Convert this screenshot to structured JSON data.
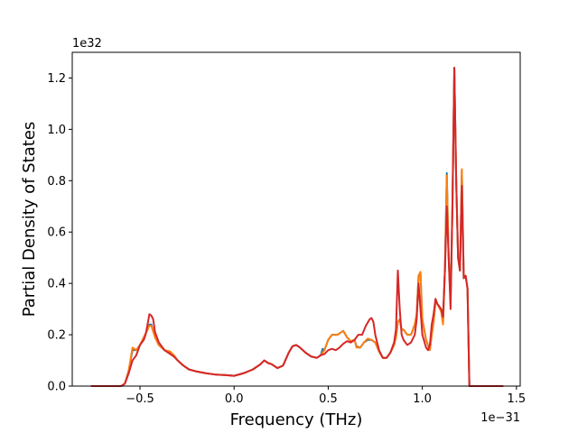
{
  "chart_data": {
    "type": "line",
    "title": "",
    "xlabel": "Frequency (THz)",
    "ylabel": "Partial Density of States",
    "x_offset_label": "1e−31",
    "y_offset_label": "1e32",
    "x_scale_note": "x values in units of 1e-31",
    "y_scale_note": "y values in units of 1e32",
    "xlim": [
      -0.86,
      1.52
    ],
    "ylim": [
      0,
      1.3
    ],
    "xticks": [
      -0.5,
      0.0,
      0.5,
      1.0,
      1.5
    ],
    "xtick_labels": [
      "−0.5",
      "0.0",
      "0.5",
      "1.0",
      "1.5"
    ],
    "yticks": [
      0.0,
      0.2,
      0.4,
      0.6,
      0.8,
      1.0,
      1.2
    ],
    "ytick_labels": [
      "0.0",
      "0.2",
      "0.4",
      "0.6",
      "0.8",
      "1.0",
      "1.2"
    ],
    "grid": false,
    "legend": "none",
    "series": [
      {
        "color": "#1f77b4",
        "points": [
          [
            -0.76,
            0
          ],
          [
            -0.6,
            0
          ],
          [
            -0.58,
            0.01
          ],
          [
            -0.56,
            0.06
          ],
          [
            -0.54,
            0.14
          ],
          [
            -0.52,
            0.14
          ],
          [
            -0.5,
            0.16
          ],
          [
            -0.48,
            0.19
          ],
          [
            -0.46,
            0.22
          ],
          [
            -0.45,
            0.24
          ],
          [
            -0.44,
            0.24
          ],
          [
            -0.42,
            0.19
          ],
          [
            -0.4,
            0.16
          ],
          [
            -0.37,
            0.14
          ],
          [
            -0.34,
            0.13
          ],
          [
            -0.32,
            0.12
          ],
          [
            -0.3,
            0.1
          ],
          [
            -0.27,
            0.08
          ],
          [
            -0.24,
            0.065
          ],
          [
            -0.2,
            0.057
          ],
          [
            -0.15,
            0.05
          ],
          [
            -0.1,
            0.045
          ],
          [
            -0.05,
            0.043
          ],
          [
            0.0,
            0.04
          ],
          [
            0.05,
            0.05
          ],
          [
            0.1,
            0.065
          ],
          [
            0.14,
            0.085
          ],
          [
            0.16,
            0.1
          ],
          [
            0.18,
            0.09
          ],
          [
            0.2,
            0.085
          ],
          [
            0.23,
            0.07
          ],
          [
            0.26,
            0.08
          ],
          [
            0.29,
            0.13
          ],
          [
            0.31,
            0.155
          ],
          [
            0.33,
            0.16
          ],
          [
            0.35,
            0.15
          ],
          [
            0.38,
            0.13
          ],
          [
            0.41,
            0.115
          ],
          [
            0.44,
            0.11
          ],
          [
            0.46,
            0.12
          ],
          [
            0.47,
            0.145
          ],
          [
            0.48,
            0.14
          ],
          [
            0.5,
            0.18
          ],
          [
            0.52,
            0.2
          ],
          [
            0.55,
            0.2
          ],
          [
            0.57,
            0.21
          ],
          [
            0.58,
            0.215
          ],
          [
            0.6,
            0.19
          ],
          [
            0.62,
            0.175
          ],
          [
            0.64,
            0.18
          ],
          [
            0.65,
            0.155
          ],
          [
            0.67,
            0.15
          ],
          [
            0.69,
            0.17
          ],
          [
            0.71,
            0.18
          ],
          [
            0.73,
            0.18
          ],
          [
            0.75,
            0.17
          ],
          [
            0.77,
            0.135
          ],
          [
            0.79,
            0.11
          ],
          [
            0.81,
            0.11
          ],
          [
            0.83,
            0.13
          ],
          [
            0.85,
            0.16
          ],
          [
            0.86,
            0.19
          ],
          [
            0.87,
            0.25
          ],
          [
            0.88,
            0.26
          ],
          [
            0.89,
            0.22
          ],
          [
            0.9,
            0.22
          ],
          [
            0.92,
            0.2
          ],
          [
            0.94,
            0.2
          ],
          [
            0.96,
            0.24
          ],
          [
            0.97,
            0.28
          ],
          [
            0.98,
            0.43
          ],
          [
            0.99,
            0.44
          ],
          [
            1.0,
            0.26
          ],
          [
            1.02,
            0.18
          ],
          [
            1.03,
            0.16
          ],
          [
            1.04,
            0.14
          ],
          [
            1.05,
            0.2
          ],
          [
            1.06,
            0.25
          ],
          [
            1.07,
            0.33
          ],
          [
            1.08,
            0.32
          ],
          [
            1.1,
            0.3
          ],
          [
            1.11,
            0.25
          ],
          [
            1.12,
            0.45
          ],
          [
            1.13,
            0.83
          ],
          [
            1.14,
            0.5
          ],
          [
            1.15,
            0.33
          ],
          [
            1.16,
            0.7
          ],
          [
            1.17,
            1.24
          ],
          [
            1.18,
            0.8
          ],
          [
            1.19,
            0.5
          ],
          [
            1.2,
            0.45
          ],
          [
            1.21,
            0.84
          ],
          [
            1.22,
            0.42
          ],
          [
            1.23,
            0.43
          ],
          [
            1.24,
            0.38
          ],
          [
            1.25,
            0
          ],
          [
            1.43,
            0
          ]
        ]
      },
      {
        "color": "#ff7f0e",
        "points": [
          [
            -0.76,
            0
          ],
          [
            -0.6,
            0
          ],
          [
            -0.58,
            0.01
          ],
          [
            -0.56,
            0.06
          ],
          [
            -0.54,
            0.15
          ],
          [
            -0.52,
            0.14
          ],
          [
            -0.5,
            0.16
          ],
          [
            -0.48,
            0.19
          ],
          [
            -0.46,
            0.22
          ],
          [
            -0.45,
            0.235
          ],
          [
            -0.44,
            0.235
          ],
          [
            -0.42,
            0.19
          ],
          [
            -0.4,
            0.16
          ],
          [
            -0.37,
            0.14
          ],
          [
            -0.34,
            0.135
          ],
          [
            -0.32,
            0.12
          ],
          [
            -0.3,
            0.1
          ],
          [
            -0.27,
            0.08
          ],
          [
            -0.24,
            0.065
          ],
          [
            -0.2,
            0.057
          ],
          [
            -0.15,
            0.05
          ],
          [
            -0.1,
            0.045
          ],
          [
            -0.05,
            0.043
          ],
          [
            0.0,
            0.04
          ],
          [
            0.05,
            0.05
          ],
          [
            0.1,
            0.065
          ],
          [
            0.14,
            0.085
          ],
          [
            0.16,
            0.1
          ],
          [
            0.18,
            0.09
          ],
          [
            0.2,
            0.085
          ],
          [
            0.23,
            0.07
          ],
          [
            0.26,
            0.08
          ],
          [
            0.29,
            0.13
          ],
          [
            0.31,
            0.155
          ],
          [
            0.33,
            0.16
          ],
          [
            0.35,
            0.15
          ],
          [
            0.38,
            0.13
          ],
          [
            0.41,
            0.115
          ],
          [
            0.44,
            0.11
          ],
          [
            0.46,
            0.12
          ],
          [
            0.47,
            0.13
          ],
          [
            0.48,
            0.14
          ],
          [
            0.5,
            0.18
          ],
          [
            0.52,
            0.2
          ],
          [
            0.55,
            0.2
          ],
          [
            0.57,
            0.21
          ],
          [
            0.58,
            0.215
          ],
          [
            0.6,
            0.19
          ],
          [
            0.62,
            0.175
          ],
          [
            0.64,
            0.18
          ],
          [
            0.65,
            0.15
          ],
          [
            0.67,
            0.15
          ],
          [
            0.69,
            0.17
          ],
          [
            0.71,
            0.185
          ],
          [
            0.73,
            0.18
          ],
          [
            0.75,
            0.17
          ],
          [
            0.77,
            0.135
          ],
          [
            0.79,
            0.11
          ],
          [
            0.81,
            0.11
          ],
          [
            0.83,
            0.13
          ],
          [
            0.85,
            0.16
          ],
          [
            0.86,
            0.19
          ],
          [
            0.87,
            0.25
          ],
          [
            0.88,
            0.26
          ],
          [
            0.89,
            0.22
          ],
          [
            0.9,
            0.22
          ],
          [
            0.92,
            0.2
          ],
          [
            0.94,
            0.2
          ],
          [
            0.96,
            0.24
          ],
          [
            0.97,
            0.28
          ],
          [
            0.98,
            0.43
          ],
          [
            0.99,
            0.445
          ],
          [
            1.0,
            0.26
          ],
          [
            1.02,
            0.18
          ],
          [
            1.03,
            0.16
          ],
          [
            1.04,
            0.14
          ],
          [
            1.05,
            0.2
          ],
          [
            1.06,
            0.25
          ],
          [
            1.07,
            0.33
          ],
          [
            1.08,
            0.32
          ],
          [
            1.1,
            0.29
          ],
          [
            1.11,
            0.24
          ],
          [
            1.12,
            0.45
          ],
          [
            1.13,
            0.82
          ],
          [
            1.14,
            0.5
          ],
          [
            1.15,
            0.33
          ],
          [
            1.16,
            0.7
          ],
          [
            1.17,
            1.23
          ],
          [
            1.18,
            0.8
          ],
          [
            1.19,
            0.5
          ],
          [
            1.2,
            0.45
          ],
          [
            1.21,
            0.845
          ],
          [
            1.22,
            0.42
          ],
          [
            1.23,
            0.43
          ],
          [
            1.24,
            0.38
          ],
          [
            1.25,
            0
          ],
          [
            1.43,
            0
          ]
        ]
      },
      {
        "color": "#d62728",
        "points": [
          [
            -0.76,
            0
          ],
          [
            -0.6,
            0
          ],
          [
            -0.58,
            0.01
          ],
          [
            -0.56,
            0.05
          ],
          [
            -0.54,
            0.1
          ],
          [
            -0.52,
            0.12
          ],
          [
            -0.5,
            0.16
          ],
          [
            -0.48,
            0.18
          ],
          [
            -0.47,
            0.2
          ],
          [
            -0.46,
            0.24
          ],
          [
            -0.45,
            0.28
          ],
          [
            -0.44,
            0.275
          ],
          [
            -0.43,
            0.26
          ],
          [
            -0.42,
            0.21
          ],
          [
            -0.4,
            0.17
          ],
          [
            -0.37,
            0.14
          ],
          [
            -0.34,
            0.125
          ],
          [
            -0.32,
            0.115
          ],
          [
            -0.3,
            0.1
          ],
          [
            -0.27,
            0.08
          ],
          [
            -0.24,
            0.065
          ],
          [
            -0.2,
            0.057
          ],
          [
            -0.15,
            0.05
          ],
          [
            -0.1,
            0.045
          ],
          [
            -0.05,
            0.043
          ],
          [
            0.0,
            0.04
          ],
          [
            0.05,
            0.05
          ],
          [
            0.1,
            0.065
          ],
          [
            0.14,
            0.085
          ],
          [
            0.16,
            0.1
          ],
          [
            0.18,
            0.09
          ],
          [
            0.2,
            0.085
          ],
          [
            0.23,
            0.07
          ],
          [
            0.26,
            0.08
          ],
          [
            0.29,
            0.13
          ],
          [
            0.31,
            0.155
          ],
          [
            0.33,
            0.16
          ],
          [
            0.35,
            0.15
          ],
          [
            0.38,
            0.13
          ],
          [
            0.41,
            0.115
          ],
          [
            0.44,
            0.11
          ],
          [
            0.46,
            0.12
          ],
          [
            0.48,
            0.125
          ],
          [
            0.5,
            0.14
          ],
          [
            0.52,
            0.145
          ],
          [
            0.54,
            0.14
          ],
          [
            0.56,
            0.15
          ],
          [
            0.58,
            0.165
          ],
          [
            0.6,
            0.175
          ],
          [
            0.62,
            0.17
          ],
          [
            0.64,
            0.18
          ],
          [
            0.66,
            0.2
          ],
          [
            0.68,
            0.2
          ],
          [
            0.7,
            0.235
          ],
          [
            0.72,
            0.26
          ],
          [
            0.73,
            0.265
          ],
          [
            0.74,
            0.25
          ],
          [
            0.75,
            0.2
          ],
          [
            0.77,
            0.14
          ],
          [
            0.79,
            0.11
          ],
          [
            0.81,
            0.11
          ],
          [
            0.83,
            0.13
          ],
          [
            0.85,
            0.17
          ],
          [
            0.86,
            0.22
          ],
          [
            0.87,
            0.45
          ],
          [
            0.88,
            0.3
          ],
          [
            0.89,
            0.2
          ],
          [
            0.9,
            0.18
          ],
          [
            0.92,
            0.16
          ],
          [
            0.94,
            0.17
          ],
          [
            0.96,
            0.2
          ],
          [
            0.97,
            0.26
          ],
          [
            0.98,
            0.4
          ],
          [
            0.99,
            0.3
          ],
          [
            1.0,
            0.2
          ],
          [
            1.02,
            0.15
          ],
          [
            1.03,
            0.14
          ],
          [
            1.04,
            0.16
          ],
          [
            1.05,
            0.24
          ],
          [
            1.06,
            0.28
          ],
          [
            1.07,
            0.34
          ],
          [
            1.08,
            0.32
          ],
          [
            1.1,
            0.3
          ],
          [
            1.11,
            0.27
          ],
          [
            1.12,
            0.45
          ],
          [
            1.13,
            0.7
          ],
          [
            1.14,
            0.5
          ],
          [
            1.15,
            0.3
          ],
          [
            1.16,
            0.7
          ],
          [
            1.17,
            1.24
          ],
          [
            1.18,
            0.8
          ],
          [
            1.19,
            0.5
          ],
          [
            1.2,
            0.45
          ],
          [
            1.21,
            0.78
          ],
          [
            1.22,
            0.42
          ],
          [
            1.23,
            0.43
          ],
          [
            1.24,
            0.38
          ],
          [
            1.25,
            0
          ],
          [
            1.43,
            0
          ]
        ]
      }
    ]
  }
}
